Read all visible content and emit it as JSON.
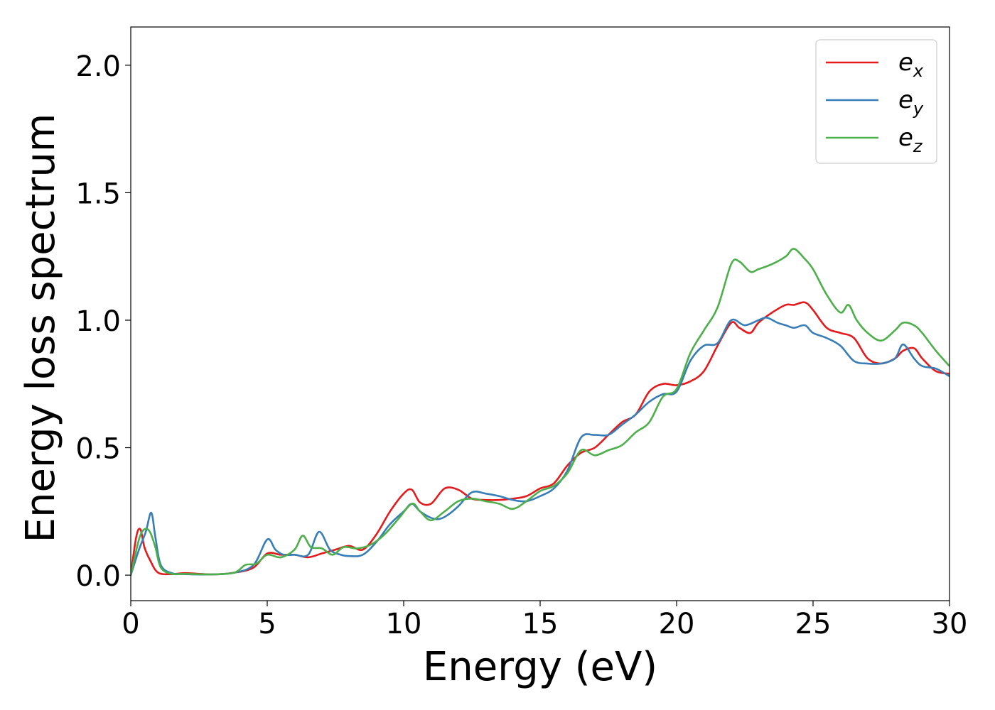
{
  "chart_data": {
    "type": "line",
    "xlabel": "Energy (eV)",
    "ylabel": "Energy loss spectrum",
    "xlim": [
      0,
      30
    ],
    "ylim": [
      -0.1,
      2.15
    ],
    "xticks": [
      0,
      5,
      10,
      15,
      20,
      25,
      30
    ],
    "yticks": [
      0.0,
      0.5,
      1.0,
      1.5,
      2.0
    ],
    "xtick_labels": [
      "0",
      "5",
      "10",
      "15",
      "20",
      "25",
      "30"
    ],
    "ytick_labels": [
      "0.0",
      "0.5",
      "1.0",
      "1.5",
      "2.0"
    ],
    "grid": false,
    "legend_position": "top-right",
    "series": [
      {
        "name": "e_x",
        "label_main": "e",
        "label_sub": "x",
        "color": "#e41a1c",
        "x": [
          0,
          0.2,
          0.35,
          0.5,
          0.7,
          1.0,
          1.5,
          2.0,
          3.0,
          3.8,
          4.5,
          5.0,
          5.5,
          6.0,
          6.5,
          7.0,
          7.5,
          8.0,
          8.5,
          9.0,
          9.5,
          10.0,
          10.3,
          10.6,
          11.0,
          11.5,
          12.0,
          12.5,
          13.0,
          13.5,
          14.0,
          14.5,
          15.0,
          15.5,
          16.0,
          16.5,
          17.0,
          17.5,
          18.0,
          18.5,
          19.0,
          19.5,
          20.0,
          20.5,
          21.0,
          21.5,
          22.0,
          22.3,
          22.7,
          23.0,
          23.5,
          24.0,
          24.3,
          24.7,
          25.0,
          25.5,
          26.0,
          26.5,
          27.0,
          27.5,
          28.0,
          28.3,
          28.7,
          29.0,
          29.5,
          30.0
        ],
        "y": [
          0.0,
          0.15,
          0.18,
          0.11,
          0.06,
          0.01,
          0.004,
          0.008,
          0.003,
          0.01,
          0.03,
          0.085,
          0.08,
          0.08,
          0.07,
          0.085,
          0.1,
          0.115,
          0.1,
          0.16,
          0.25,
          0.32,
          0.335,
          0.285,
          0.28,
          0.34,
          0.335,
          0.3,
          0.295,
          0.295,
          0.3,
          0.31,
          0.34,
          0.36,
          0.43,
          0.48,
          0.5,
          0.55,
          0.6,
          0.63,
          0.72,
          0.75,
          0.745,
          0.76,
          0.8,
          0.9,
          0.99,
          0.97,
          0.95,
          0.99,
          1.03,
          1.06,
          1.06,
          1.07,
          1.04,
          0.97,
          0.95,
          0.93,
          0.85,
          0.83,
          0.85,
          0.88,
          0.89,
          0.85,
          0.8,
          0.79
        ]
      },
      {
        "name": "e_y",
        "label_main": "e",
        "label_sub": "y",
        "color": "#377eb8",
        "x": [
          0,
          0.3,
          0.55,
          0.75,
          0.9,
          1.1,
          1.5,
          2.0,
          3.0,
          3.8,
          4.5,
          5.0,
          5.3,
          5.6,
          6.0,
          6.5,
          6.9,
          7.3,
          7.7,
          8.0,
          8.5,
          9.0,
          9.5,
          10.0,
          10.3,
          10.6,
          11.0,
          11.3,
          11.6,
          12.0,
          12.5,
          13.0,
          13.5,
          14.0,
          14.5,
          15.0,
          15.5,
          16.0,
          16.5,
          17.0,
          17.5,
          18.0,
          18.5,
          19.0,
          19.5,
          20.0,
          20.5,
          21.0,
          21.5,
          22.0,
          22.5,
          23.0,
          23.3,
          23.7,
          24.0,
          24.3,
          24.7,
          25.0,
          25.5,
          26.0,
          26.5,
          27.0,
          27.5,
          28.0,
          28.3,
          28.7,
          29.0,
          29.5,
          30.0
        ],
        "y": [
          0.0,
          0.1,
          0.17,
          0.245,
          0.15,
          0.04,
          0.008,
          0.004,
          0.003,
          0.01,
          0.04,
          0.14,
          0.1,
          0.08,
          0.08,
          0.08,
          0.17,
          0.1,
          0.08,
          0.075,
          0.08,
          0.13,
          0.2,
          0.25,
          0.28,
          0.25,
          0.225,
          0.22,
          0.235,
          0.27,
          0.325,
          0.32,
          0.31,
          0.295,
          0.29,
          0.31,
          0.34,
          0.41,
          0.54,
          0.55,
          0.55,
          0.59,
          0.63,
          0.68,
          0.71,
          0.72,
          0.84,
          0.9,
          0.91,
          1.0,
          0.98,
          1.0,
          1.01,
          0.99,
          0.98,
          0.97,
          0.98,
          0.95,
          0.93,
          0.9,
          0.84,
          0.83,
          0.83,
          0.85,
          0.905,
          0.85,
          0.82,
          0.81,
          0.78
        ]
      },
      {
        "name": "e_z",
        "label_main": "e",
        "label_sub": "z",
        "color": "#4daf4a",
        "x": [
          0,
          0.3,
          0.5,
          0.7,
          0.9,
          1.1,
          1.5,
          2.0,
          3.0,
          3.8,
          4.2,
          4.6,
          5.0,
          5.5,
          6.0,
          6.3,
          6.6,
          7.0,
          7.4,
          7.8,
          8.3,
          8.8,
          9.3,
          9.8,
          10.3,
          10.6,
          11.0,
          11.5,
          12.0,
          12.5,
          13.0,
          13.5,
          14.0,
          14.5,
          15.0,
          15.5,
          16.0,
          16.5,
          17.0,
          17.5,
          18.0,
          18.5,
          19.0,
          19.5,
          20.0,
          20.5,
          21.0,
          21.5,
          22.0,
          22.3,
          22.7,
          23.0,
          23.5,
          24.0,
          24.3,
          24.7,
          25.0,
          25.5,
          26.0,
          26.3,
          26.6,
          27.0,
          27.5,
          28.0,
          28.3,
          28.7,
          29.0,
          29.5,
          30.0
        ],
        "y": [
          0.0,
          0.14,
          0.18,
          0.17,
          0.11,
          0.03,
          0.005,
          0.005,
          0.003,
          0.01,
          0.04,
          0.045,
          0.08,
          0.07,
          0.1,
          0.155,
          0.11,
          0.105,
          0.08,
          0.11,
          0.105,
          0.12,
          0.16,
          0.22,
          0.28,
          0.25,
          0.215,
          0.25,
          0.29,
          0.3,
          0.29,
          0.28,
          0.26,
          0.29,
          0.33,
          0.35,
          0.4,
          0.49,
          0.47,
          0.49,
          0.51,
          0.56,
          0.6,
          0.7,
          0.73,
          0.87,
          0.96,
          1.05,
          1.22,
          1.23,
          1.19,
          1.2,
          1.22,
          1.25,
          1.28,
          1.24,
          1.2,
          1.1,
          1.03,
          1.06,
          1.0,
          0.95,
          0.92,
          0.96,
          0.99,
          0.98,
          0.95,
          0.88,
          0.82
        ]
      }
    ]
  }
}
